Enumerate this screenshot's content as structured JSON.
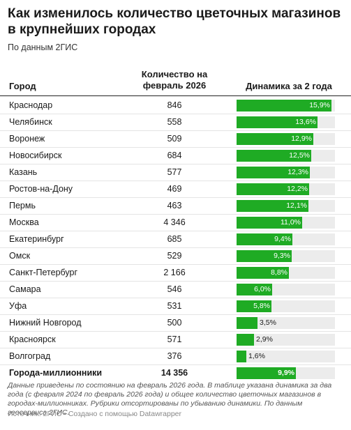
{
  "title": "Как изменилось количество цветочных магазинов в крупнейших городах",
  "subtitle": "По данным 2ГИС",
  "columns": {
    "city": "Город",
    "count": "Количество на февраль 2026",
    "dynamic": "Динамика за 2 года"
  },
  "colors": {
    "bar": "#1fab24",
    "bar_bg": "#ececec"
  },
  "chart_data": {
    "type": "table",
    "xlim": [
      0,
      16.5
    ],
    "rows": [
      {
        "city": "Краснодар",
        "count": "846",
        "value": 15.9,
        "label": "15,9%"
      },
      {
        "city": "Челябинск",
        "count": "558",
        "value": 13.6,
        "label": "13,6%"
      },
      {
        "city": "Воронеж",
        "count": "509",
        "value": 12.9,
        "label": "12,9%"
      },
      {
        "city": "Новосибирск",
        "count": "684",
        "value": 12.5,
        "label": "12,5%"
      },
      {
        "city": "Казань",
        "count": "577",
        "value": 12.3,
        "label": "12,3%"
      },
      {
        "city": "Ростов-на-Дону",
        "count": "469",
        "value": 12.2,
        "label": "12,2%"
      },
      {
        "city": "Пермь",
        "count": "463",
        "value": 12.1,
        "label": "12,1%"
      },
      {
        "city": "Москва",
        "count": "4 346",
        "value": 11.0,
        "label": "11,0%"
      },
      {
        "city": "Екатеринбург",
        "count": "685",
        "value": 9.4,
        "label": "9,4%"
      },
      {
        "city": "Омск",
        "count": "529",
        "value": 9.3,
        "label": "9,3%"
      },
      {
        "city": "Санкт-Петербург",
        "count": "2 166",
        "value": 8.8,
        "label": "8,8%"
      },
      {
        "city": "Самара",
        "count": "546",
        "value": 6.0,
        "label": "6,0%"
      },
      {
        "city": "Уфа",
        "count": "531",
        "value": 5.8,
        "label": "5,8%"
      },
      {
        "city": "Нижний Новгород",
        "count": "500",
        "value": 3.5,
        "label": "3,5%"
      },
      {
        "city": "Красноярск",
        "count": "571",
        "value": 2.9,
        "label": "2,9%"
      },
      {
        "city": "Волгоград",
        "count": "376",
        "value": 1.6,
        "label": "1,6%"
      }
    ],
    "total": {
      "city": "Города-миллионники",
      "count": "14 356",
      "value": 9.9,
      "label": "9,9%"
    }
  },
  "notes": "Данные приведены по состоянию на февраль 2026 года. В таблице указана динамика за два года (с февраля 2024 по февраль 2026 года) и общее количество цветочных магазинов в городах-миллионниках. Рубрики отсортированы по убыванию динамики. По данным геосервиса 2ГИС.",
  "source": "Источник: 2ГИС • Создано с помощью Datawrapper"
}
